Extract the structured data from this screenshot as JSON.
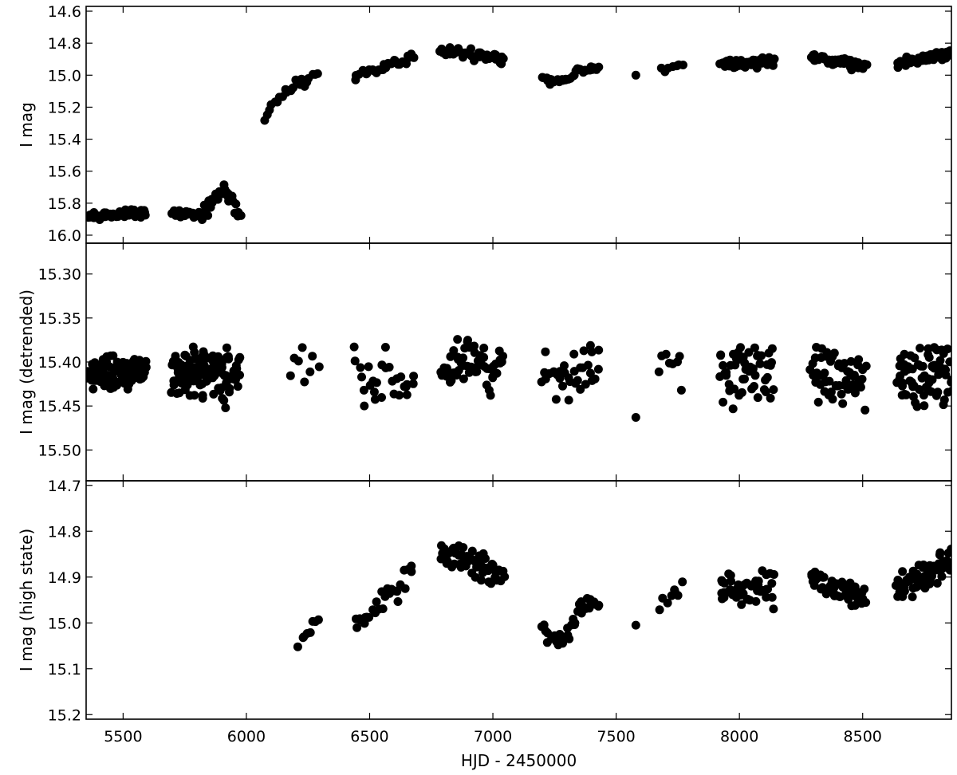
{
  "chart_data": [
    {
      "type": "scatter",
      "ylabel": "I mag",
      "xlim": [
        5350,
        8860
      ],
      "ylim": [
        16.05,
        14.57
      ],
      "y_inverted": true,
      "yticks": [
        "14.6",
        "14.8",
        "15.0",
        "15.2",
        "15.4",
        "15.6",
        "15.8",
        "16.0"
      ],
      "marker_color": "#000000",
      "segments": [
        {
          "x_start": 5355,
          "x_end": 5590,
          "y_start": 15.88,
          "y_end": 15.86,
          "count": 60,
          "scatter": 0.012
        },
        {
          "x_start": 5700,
          "x_end": 5820,
          "y_start": 15.86,
          "y_end": 15.87,
          "count": 22,
          "scatter": 0.012
        },
        {
          "x_start": 5820,
          "x_end": 5910,
          "y_start": 15.87,
          "y_end": 15.72,
          "count": 22,
          "scatter": 0.02
        },
        {
          "x_start": 5910,
          "x_end": 5975,
          "y_start": 15.72,
          "y_end": 15.87,
          "count": 14,
          "scatter": 0.02
        },
        {
          "x_start": 6075,
          "x_end": 6285,
          "y_start": 15.3,
          "y_end": 15.0,
          "count": 22,
          "scatter": 0.015,
          "shape": "sqrt"
        },
        {
          "x_start": 6440,
          "x_end": 6680,
          "y_start": 15.01,
          "y_end": 14.88,
          "count": 28,
          "scatter": 0.012
        },
        {
          "x_start": 6790,
          "x_end": 7040,
          "y_start": 14.84,
          "y_end": 14.9,
          "count": 60,
          "scatter": 0.014
        },
        {
          "x_start": 7200,
          "x_end": 7430,
          "y_start": 15.01,
          "y_end": 14.95,
          "count": 35,
          "scatter": 0.01,
          "shape": "dip",
          "depth": 0.05
        },
        {
          "x_start": 7580,
          "x_end": 7580,
          "y_start": 15.0,
          "y_end": 15.0,
          "count": 1,
          "scatter": 0.0
        },
        {
          "x_start": 7680,
          "x_end": 7770,
          "y_start": 14.96,
          "y_end": 14.94,
          "count": 8,
          "scatter": 0.01
        },
        {
          "x_start": 7920,
          "x_end": 8140,
          "y_start": 14.93,
          "y_end": 14.91,
          "count": 50,
          "scatter": 0.016
        },
        {
          "x_start": 8290,
          "x_end": 8510,
          "y_start": 14.88,
          "y_end": 14.95,
          "count": 55,
          "scatter": 0.014
        },
        {
          "x_start": 8640,
          "x_end": 8860,
          "y_start": 14.93,
          "y_end": 14.86,
          "count": 70,
          "scatter": 0.014
        }
      ]
    },
    {
      "type": "scatter",
      "ylabel": "I mag (detrended)",
      "xlim": [
        5350,
        8860
      ],
      "ylim": [
        15.535,
        15.265
      ],
      "y_inverted": true,
      "yticks": [
        "15.30",
        "15.35",
        "15.40",
        "15.45",
        "15.50"
      ],
      "marker_color": "#000000",
      "segments": [
        {
          "x_start": 5355,
          "x_end": 5590,
          "y_start": 15.413,
          "y_end": 15.413,
          "count": 110,
          "scatter": 0.008
        },
        {
          "x_start": 5700,
          "x_end": 5975,
          "y_start": 15.413,
          "y_end": 15.413,
          "count": 130,
          "scatter": 0.015
        },
        {
          "x_start": 6180,
          "x_end": 6290,
          "y_start": 15.41,
          "y_end": 15.41,
          "count": 8,
          "scatter": 0.015
        },
        {
          "x_start": 6440,
          "x_end": 6680,
          "y_start": 15.415,
          "y_end": 15.415,
          "count": 28,
          "scatter": 0.018
        },
        {
          "x_start": 6790,
          "x_end": 7040,
          "y_start": 15.405,
          "y_end": 15.405,
          "count": 60,
          "scatter": 0.016
        },
        {
          "x_start": 7200,
          "x_end": 7430,
          "y_start": 15.42,
          "y_end": 15.41,
          "count": 35,
          "scatter": 0.014
        },
        {
          "x_start": 7580,
          "x_end": 7580,
          "y_start": 15.463,
          "y_end": 15.463,
          "count": 1,
          "scatter": 0.0
        },
        {
          "x_start": 7680,
          "x_end": 7770,
          "y_start": 15.412,
          "y_end": 15.412,
          "count": 8,
          "scatter": 0.01
        },
        {
          "x_start": 7920,
          "x_end": 8140,
          "y_start": 15.415,
          "y_end": 15.415,
          "count": 50,
          "scatter": 0.018
        },
        {
          "x_start": 8290,
          "x_end": 8510,
          "y_start": 15.415,
          "y_end": 15.415,
          "count": 55,
          "scatter": 0.016
        },
        {
          "x_start": 8640,
          "x_end": 8860,
          "y_start": 15.415,
          "y_end": 15.415,
          "count": 70,
          "scatter": 0.018
        }
      ]
    },
    {
      "type": "scatter",
      "ylabel": "I mag (high state)",
      "xlim": [
        5350,
        8860
      ],
      "ylim": [
        15.21,
        14.69
      ],
      "y_inverted": true,
      "yticks": [
        "14.7",
        "14.8",
        "14.9",
        "15.0",
        "15.1",
        "15.2"
      ],
      "xticks": [
        "5500",
        "6000",
        "6500",
        "7000",
        "7500",
        "8000",
        "8500"
      ],
      "xlabel": "HJD - 2450000",
      "marker_color": "#000000",
      "segments": [
        {
          "x_start": 6210,
          "x_end": 6290,
          "y_start": 15.05,
          "y_end": 14.99,
          "count": 8,
          "scatter": 0.01
        },
        {
          "x_start": 6440,
          "x_end": 6680,
          "y_start": 15.01,
          "y_end": 14.88,
          "count": 28,
          "scatter": 0.014
        },
        {
          "x_start": 6790,
          "x_end": 7040,
          "y_start": 14.845,
          "y_end": 14.9,
          "count": 60,
          "scatter": 0.015
        },
        {
          "x_start": 7200,
          "x_end": 7430,
          "y_start": 15.01,
          "y_end": 14.95,
          "count": 35,
          "scatter": 0.012,
          "shape": "dip",
          "depth": 0.05
        },
        {
          "x_start": 7580,
          "x_end": 7580,
          "y_start": 15.005,
          "y_end": 15.005,
          "count": 1,
          "scatter": 0.0
        },
        {
          "x_start": 7680,
          "x_end": 7770,
          "y_start": 14.96,
          "y_end": 14.93,
          "count": 8,
          "scatter": 0.01
        },
        {
          "x_start": 7920,
          "x_end": 8140,
          "y_start": 14.93,
          "y_end": 14.92,
          "count": 50,
          "scatter": 0.018
        },
        {
          "x_start": 8290,
          "x_end": 8510,
          "y_start": 14.9,
          "y_end": 14.95,
          "count": 55,
          "scatter": 0.015
        },
        {
          "x_start": 8640,
          "x_end": 8860,
          "y_start": 14.93,
          "y_end": 14.86,
          "count": 70,
          "scatter": 0.016
        }
      ]
    }
  ]
}
